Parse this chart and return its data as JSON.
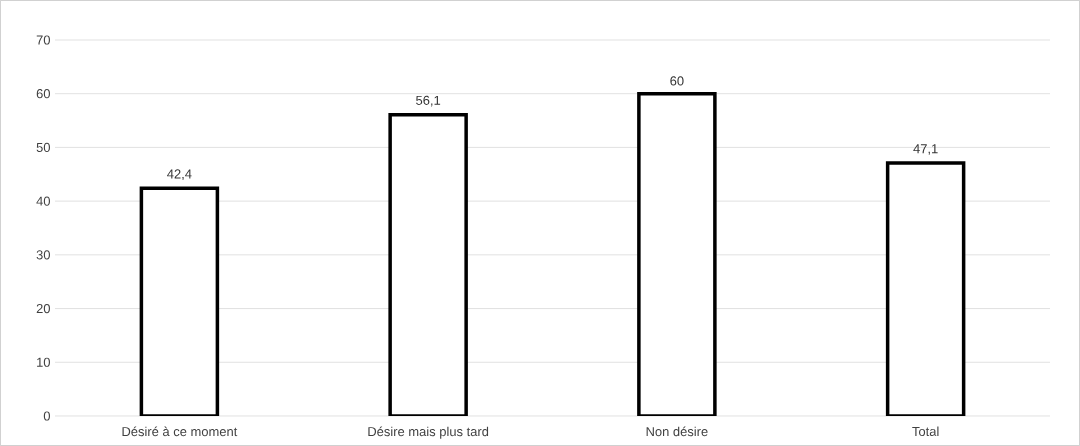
{
  "chart_data": {
    "type": "bar",
    "categories": [
      "Désiré à ce moment",
      "Désire mais plus tard",
      "Non désire",
      "Total"
    ],
    "values": [
      42.4,
      56.1,
      60,
      47.1
    ],
    "value_labels": [
      "42,4",
      "56,1",
      "60",
      "47,1"
    ],
    "color": "#ffffff",
    "ylim": [
      0,
      70
    ],
    "yticks": [
      0,
      10,
      20,
      30,
      40,
      50,
      60,
      70
    ],
    "grid": "y"
  }
}
